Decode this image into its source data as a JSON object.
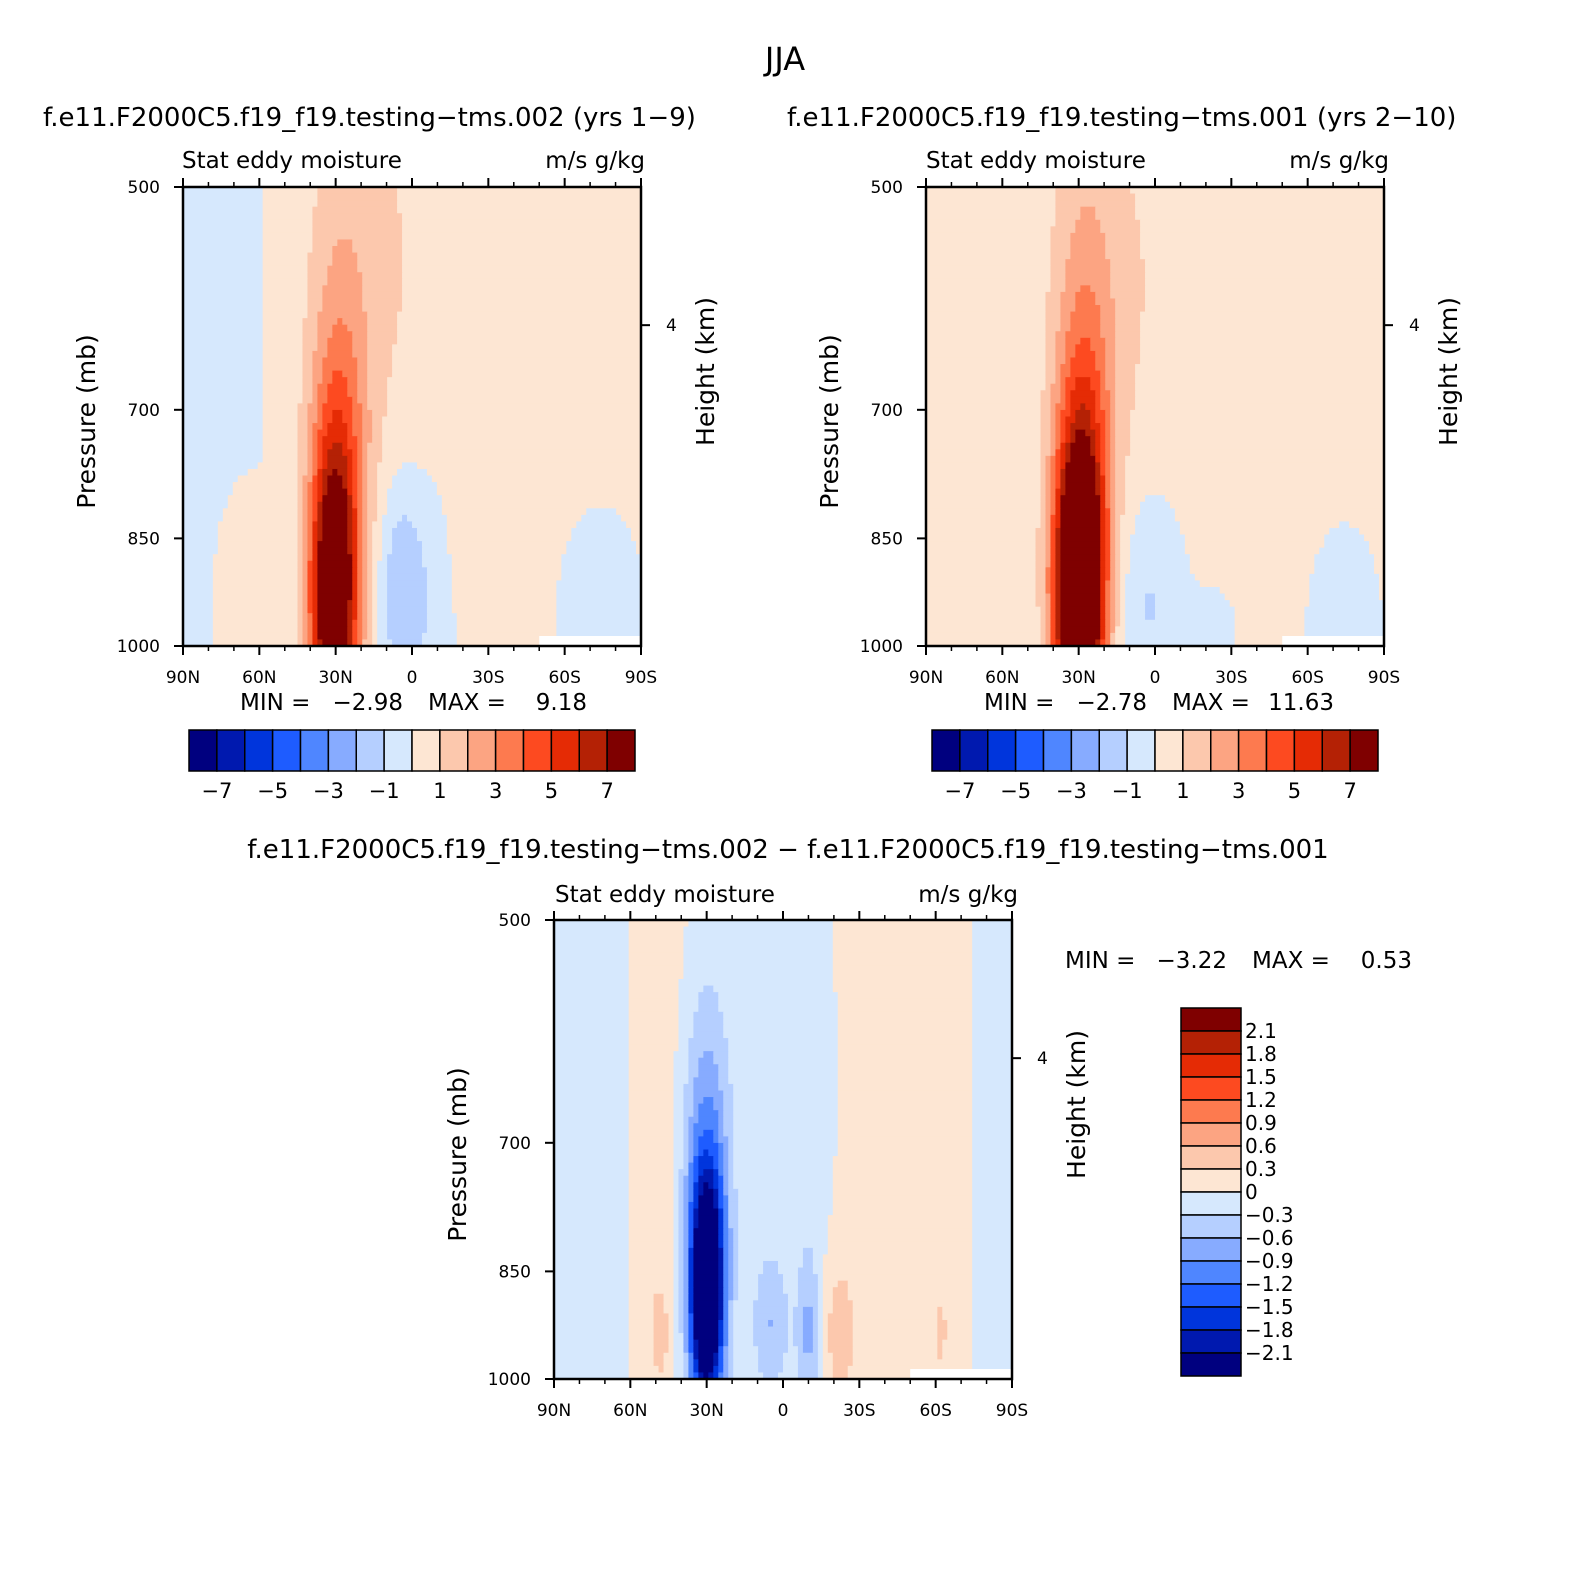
{
  "page": {
    "title": "JJA"
  },
  "colors": {
    "scale": [
      "#00007f",
      "#0019af",
      "#0035dc",
      "#1e5cff",
      "#4f86ff",
      "#87abff",
      "#b5cfff",
      "#d6e8fd",
      "#fde6d3",
      "#fcc8ad",
      "#fca482",
      "#fd7a4f",
      "#fd4a20",
      "#e52b05",
      "#b42105",
      "#7f0000"
    ],
    "blank": "#ffffff"
  },
  "panels": [
    {
      "id": "model-002",
      "title": "f.e11.F2000C5.f19_f19.testing−tms.002 (yrs 1−9)",
      "left_string": "Stat eddy moisture",
      "right_string": "m/s g/kg",
      "min_label": "MIN =",
      "min_value": "−2.98",
      "max_label": "MAX =",
      "max_value": "9.18"
    },
    {
      "id": "model-001",
      "title": "f.e11.F2000C5.f19_f19.testing−tms.001 (yrs 2−10)",
      "left_string": "Stat eddy moisture",
      "right_string": "m/s g/kg",
      "min_label": "MIN =",
      "min_value": "−2.78",
      "max_label": "MAX =",
      "max_value": "11.63"
    },
    {
      "id": "difference",
      "title": "f.e11.F2000C5.f19_f19.testing−tms.002 − f.e11.F2000C5.f19_f19.testing−tms.001",
      "left_string": "Stat eddy moisture",
      "right_string": "m/s g/kg",
      "min_label": "MIN =",
      "min_value": "−3.22",
      "max_label": "MAX =",
      "max_value": "0.53"
    }
  ],
  "chart_data": [
    {
      "type": "heatmap",
      "panel": "model-002",
      "plot_kind": "filled-contour latitude-pressure cross section",
      "xlabel": "",
      "ylabel": "Pressure (mb)",
      "ylabel_right": "Height (km)",
      "x_ticks": [
        "90N",
        "60N",
        "30N",
        "0",
        "30S",
        "60S",
        "90S"
      ],
      "x_values": [
        90,
        60,
        30,
        0,
        -30,
        -60,
        -90
      ],
      "xlim": [
        90,
        -90
      ],
      "y_ticks": [
        "500",
        "700",
        "850",
        "1000"
      ],
      "y_values": [
        500,
        700,
        850,
        1000
      ],
      "ylim": [
        1000,
        500
      ],
      "y_scale": "log",
      "right_ticks": [
        "4"
      ],
      "contour_levels": [
        -7,
        -6,
        -5,
        -4,
        -3,
        -2,
        -1,
        0,
        1,
        2,
        3,
        4,
        5,
        6,
        7
      ],
      "colorbar_labels": [
        "−7",
        "−5",
        "−3",
        "−1",
        "1",
        "3",
        "5",
        "7"
      ],
      "colorbar_orientation": "horizontal",
      "min": -2.98,
      "max": 9.18,
      "features": [
        {
          "desc": "maximum core",
          "lat": 31,
          "p": 930,
          "value": 8.5
        },
        {
          "desc": "positive tongue aloft",
          "lat": 27,
          "p": 650,
          "value": 1.5
        },
        {
          "desc": "negative patch",
          "lat": 5,
          "p": 900,
          "value": -1.5
        }
      ]
    },
    {
      "type": "heatmap",
      "panel": "model-001",
      "plot_kind": "filled-contour latitude-pressure cross section",
      "xlabel": "",
      "ylabel": "Pressure (mb)",
      "ylabel_right": "Height (km)",
      "x_ticks": [
        "90N",
        "60N",
        "30N",
        "0",
        "30S",
        "60S",
        "90S"
      ],
      "x_values": [
        90,
        60,
        30,
        0,
        -30,
        -60,
        -90
      ],
      "xlim": [
        90,
        -90
      ],
      "y_ticks": [
        "500",
        "700",
        "850",
        "1000"
      ],
      "y_values": [
        500,
        700,
        850,
        1000
      ],
      "ylim": [
        1000,
        500
      ],
      "y_scale": "log",
      "right_ticks": [
        "4"
      ],
      "contour_levels": [
        -7,
        -6,
        -5,
        -4,
        -3,
        -2,
        -1,
        0,
        1,
        2,
        3,
        4,
        5,
        6,
        7
      ],
      "colorbar_labels": [
        "−7",
        "−5",
        "−3",
        "−1",
        "1",
        "3",
        "5",
        "7"
      ],
      "colorbar_orientation": "horizontal",
      "min": -2.78,
      "max": 11.63,
      "features": [
        {
          "desc": "maximum core",
          "lat": 30,
          "p": 910,
          "value": 11
        },
        {
          "desc": "positive tongue aloft",
          "lat": 28,
          "p": 620,
          "value": 1.5
        },
        {
          "desc": "negative patch",
          "lat": 3,
          "p": 920,
          "value": -1
        }
      ]
    },
    {
      "type": "heatmap",
      "panel": "difference",
      "plot_kind": "filled-contour latitude-pressure cross section",
      "xlabel": "",
      "ylabel": "Pressure (mb)",
      "ylabel_right": "Height (km)",
      "x_ticks": [
        "90N",
        "60N",
        "30N",
        "0",
        "30S",
        "60S",
        "90S"
      ],
      "x_values": [
        90,
        60,
        30,
        0,
        -30,
        -60,
        -90
      ],
      "xlim": [
        90,
        -90
      ],
      "y_ticks": [
        "500",
        "700",
        "850",
        "1000"
      ],
      "y_values": [
        500,
        700,
        850,
        1000
      ],
      "ylim": [
        1000,
        500
      ],
      "y_scale": "log",
      "right_ticks": [
        "4"
      ],
      "contour_levels": [
        -2.1,
        -1.8,
        -1.5,
        -1.2,
        -0.9,
        -0.6,
        -0.3,
        0,
        0.3,
        0.6,
        0.9,
        1.2,
        1.5,
        1.8,
        2.1
      ],
      "colorbar_labels": [
        "2.1",
        "1.8",
        "1.5",
        "1.2",
        "0.9",
        "0.6",
        "0.3",
        "0",
        "−0.3",
        "−0.6",
        "−0.9",
        "−1.2",
        "−1.5",
        "−1.8",
        "−2.1"
      ],
      "colorbar_orientation": "vertical",
      "min": -3.22,
      "max": 0.53,
      "features": [
        {
          "desc": "minimum core",
          "lat": 30,
          "p": 880,
          "value": -3
        },
        {
          "desc": "weak positive",
          "lat": -22,
          "p": 930,
          "value": 0.4
        }
      ]
    }
  ]
}
